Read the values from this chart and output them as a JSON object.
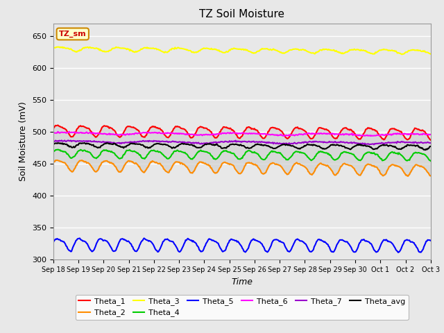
{
  "title": "TZ Soil Moisture",
  "xlabel": "Time",
  "ylabel": "Soil Moisture (mV)",
  "ylim": [
    300,
    670
  ],
  "xtick_labels": [
    "Sep 18",
    "Sep 19",
    "Sep 20",
    "Sep 21",
    "Sep 22",
    "Sep 23",
    "Sep 24",
    "Sep 25",
    "Sep 26",
    "Sep 27",
    "Sep 28",
    "Sep 29",
    "Sep 30",
    "Oct 1",
    "Oct 2",
    "Oct 3"
  ],
  "n_points": 500,
  "series_order": [
    "Theta_1",
    "Theta_2",
    "Theta_3",
    "Theta_4",
    "Theta_5",
    "Theta_6",
    "Theta_7",
    "Theta_avg"
  ],
  "series": {
    "Theta_1": {
      "color": "#ff0000",
      "base": 503,
      "amp": 8,
      "trend": -0.01,
      "freq": 1.05,
      "lw": 1.5
    },
    "Theta_2": {
      "color": "#ff8c00",
      "base": 449,
      "amp": 8,
      "trend": -0.016,
      "freq": 1.05,
      "lw": 1.5
    },
    "Theta_3": {
      "color": "#ffff00",
      "base": 630,
      "amp": 3,
      "trend": -0.009,
      "freq": 0.85,
      "lw": 1.5
    },
    "Theta_4": {
      "color": "#00cc00",
      "base": 467,
      "amp": 6,
      "trend": -0.009,
      "freq": 1.05,
      "lw": 1.5
    },
    "Theta_5": {
      "color": "#0000ff",
      "base": 325,
      "amp": 9,
      "trend": -0.004,
      "freq": 1.15,
      "lw": 1.5
    },
    "Theta_6": {
      "color": "#ff00ff",
      "base": 498,
      "amp": 1.5,
      "trend": -0.005,
      "freq": 0.3,
      "lw": 1.5
    },
    "Theta_7": {
      "color": "#9900cc",
      "base": 485,
      "amp": 1.5,
      "trend": -0.005,
      "freq": 0.3,
      "lw": 1.5
    },
    "Theta_avg": {
      "color": "#000000",
      "base": 480,
      "amp": 3,
      "trend": -0.007,
      "freq": 1.0,
      "lw": 1.5
    }
  },
  "legend_box_text": "TZ_sm",
  "legend_box_text_color": "#cc0000",
  "legend_box_face": "#ffffcc",
  "legend_box_edge": "#cc8800",
  "plot_bg_color": "#e8e8e8",
  "fig_bg_color": "#e8e8e8",
  "grid_color": "#ffffff",
  "fill_color": "#d0d0d0",
  "fill_alpha": 0.7
}
